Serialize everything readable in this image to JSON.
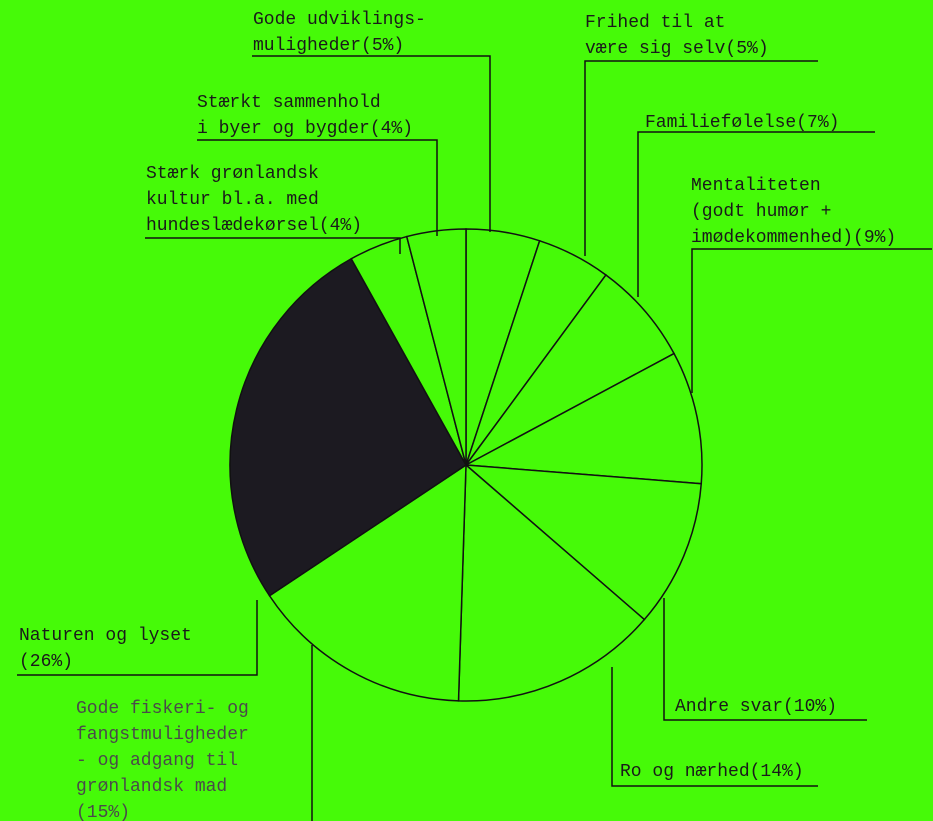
{
  "chart_data": {
    "type": "pie",
    "colors": {
      "background": "#46fa08",
      "slice": "#46fa08",
      "highlight": "#1c1a21",
      "line": "#111111"
    },
    "slices": [
      {
        "label_lines": [
          "Gode udviklings-",
          "muligheder(5%)"
        ],
        "value": 5
      },
      {
        "label_lines": [
          "Frihed til at",
          "være sig selv(5%)"
        ],
        "value": 5
      },
      {
        "label_lines": [
          "Familiefølelse(7%)"
        ],
        "value": 7
      },
      {
        "label_lines": [
          "Mentaliteten",
          "(godt humør +",
          "imødekommenhed)(9%)"
        ],
        "value": 9
      },
      {
        "label_lines": [
          "Andre svar(10%)"
        ],
        "value": 10
      },
      {
        "label_lines": [
          "Ro og nærhed(14%)"
        ],
        "value": 14
      },
      {
        "label_lines": [
          "Gode fiskeri- og",
          "fangstmuligheder",
          "- og adgang til",
          "grønlandsk mad",
          "(15%)"
        ],
        "value": 15
      },
      {
        "label_lines": [
          "Naturen og lyset",
          "(26%)"
        ],
        "value": 26,
        "highlight": true
      },
      {
        "label_lines": [
          "Stærk grønlandsk",
          "kultur bl.a. med",
          "hundeslædekørsel(4%)"
        ],
        "value": 4
      },
      {
        "label_lines": [
          "Stærkt sammenhold",
          "i byer og bygder(4%)"
        ],
        "value": 4
      }
    ]
  }
}
